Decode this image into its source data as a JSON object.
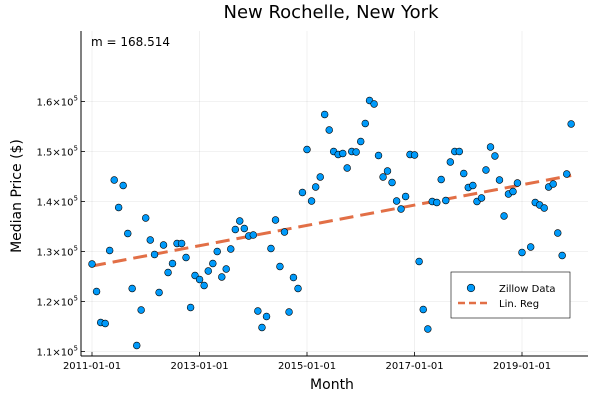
{
  "chart_data": {
    "type": "scatter",
    "title": "New Rochelle, New York",
    "xlabel": "Month",
    "ylabel": "Median Price ($)",
    "x_tick_labels": [
      "2011-01-01",
      "2013-01-01",
      "2015-01-01",
      "2017-01-01",
      "2019-01-01"
    ],
    "y_tick_labels": [
      {
        "value": 110000,
        "base": "1.1×10",
        "exp": "5"
      },
      {
        "value": 120000,
        "base": "1.2×10",
        "exp": "5"
      },
      {
        "value": 130000,
        "base": "1.3×10",
        "exp": "5"
      },
      {
        "value": 140000,
        "base": "1.4×10",
        "exp": "5"
      },
      {
        "value": 150000,
        "base": "1.5×10",
        "exp": "5"
      },
      {
        "value": 160000,
        "base": "1.6×10",
        "exp": "5"
      }
    ],
    "annotation": "m = 168.514",
    "grid": true,
    "legend_position": "bottom-right",
    "series": [
      {
        "name": "Zillow Data",
        "kind": "scatter",
        "color": "#009AFA",
        "points": [
          [
            "2011-01-01",
            127500
          ],
          [
            "2011-02-01",
            122000
          ],
          [
            "2011-03-01",
            115800
          ],
          [
            "2011-04-01",
            115600
          ],
          [
            "2011-05-01",
            130200
          ],
          [
            "2011-06-01",
            144300
          ],
          [
            "2011-07-01",
            138800
          ],
          [
            "2011-08-01",
            143200
          ],
          [
            "2011-09-01",
            133600
          ],
          [
            "2011-10-01",
            122600
          ],
          [
            "2011-11-01",
            111200
          ],
          [
            "2011-12-01",
            118300
          ],
          [
            "2012-01-01",
            136700
          ],
          [
            "2012-02-01",
            132300
          ],
          [
            "2012-03-01",
            129400
          ],
          [
            "2012-04-01",
            121800
          ],
          [
            "2012-05-01",
            131300
          ],
          [
            "2012-06-01",
            125800
          ],
          [
            "2012-07-01",
            127600
          ],
          [
            "2012-08-01",
            131600
          ],
          [
            "2012-09-01",
            131600
          ],
          [
            "2012-10-01",
            128800
          ],
          [
            "2012-11-01",
            118800
          ],
          [
            "2012-12-01",
            125200
          ],
          [
            "2013-01-01",
            124400
          ],
          [
            "2013-02-01",
            123200
          ],
          [
            "2013-03-01",
            126100
          ],
          [
            "2013-04-01",
            127600
          ],
          [
            "2013-05-01",
            130000
          ],
          [
            "2013-06-01",
            124900
          ],
          [
            "2013-07-01",
            126500
          ],
          [
            "2013-08-01",
            130500
          ],
          [
            "2013-09-01",
            134400
          ],
          [
            "2013-10-01",
            136100
          ],
          [
            "2013-11-01",
            134600
          ],
          [
            "2013-12-01",
            133100
          ],
          [
            "2014-01-01",
            133300
          ],
          [
            "2014-02-01",
            118100
          ],
          [
            "2014-03-01",
            114800
          ],
          [
            "2014-04-01",
            117000
          ],
          [
            "2014-05-01",
            130600
          ],
          [
            "2014-06-01",
            136300
          ],
          [
            "2014-07-01",
            127000
          ],
          [
            "2014-08-01",
            133900
          ],
          [
            "2014-09-01",
            117900
          ],
          [
            "2014-10-01",
            124800
          ],
          [
            "2014-11-01",
            122600
          ],
          [
            "2014-12-01",
            141800
          ],
          [
            "2015-01-01",
            150400
          ],
          [
            "2015-02-01",
            140100
          ],
          [
            "2015-03-01",
            142900
          ],
          [
            "2015-04-01",
            144900
          ],
          [
            "2015-05-01",
            157400
          ],
          [
            "2015-06-01",
            154300
          ],
          [
            "2015-07-01",
            150000
          ],
          [
            "2015-08-01",
            149400
          ],
          [
            "2015-09-01",
            149600
          ],
          [
            "2015-10-01",
            146700
          ],
          [
            "2015-11-01",
            150000
          ],
          [
            "2015-12-01",
            149900
          ],
          [
            "2016-01-01",
            152000
          ],
          [
            "2016-02-01",
            155600
          ],
          [
            "2016-03-01",
            160200
          ],
          [
            "2016-04-01",
            159500
          ],
          [
            "2016-05-01",
            149200
          ],
          [
            "2016-06-01",
            144900
          ],
          [
            "2016-07-01",
            146100
          ],
          [
            "2016-08-01",
            143800
          ],
          [
            "2016-09-01",
            140100
          ],
          [
            "2016-10-01",
            138500
          ],
          [
            "2016-11-01",
            141000
          ],
          [
            "2016-12-01",
            149400
          ],
          [
            "2017-01-01",
            149300
          ],
          [
            "2017-02-01",
            128000
          ],
          [
            "2017-03-01",
            118400
          ],
          [
            "2017-04-01",
            114500
          ],
          [
            "2017-05-01",
            140000
          ],
          [
            "2017-06-01",
            139800
          ],
          [
            "2017-07-01",
            144400
          ],
          [
            "2017-08-01",
            140200
          ],
          [
            "2017-09-01",
            147900
          ],
          [
            "2017-10-01",
            150000
          ],
          [
            "2017-11-01",
            150000
          ],
          [
            "2017-12-01",
            145600
          ],
          [
            "2018-01-01",
            142800
          ],
          [
            "2018-02-01",
            143200
          ],
          [
            "2018-03-01",
            140000
          ],
          [
            "2018-04-01",
            140700
          ],
          [
            "2018-05-01",
            146300
          ],
          [
            "2018-06-01",
            150900
          ],
          [
            "2018-07-01",
            149100
          ],
          [
            "2018-08-01",
            144300
          ],
          [
            "2018-09-01",
            137100
          ],
          [
            "2018-10-01",
            141500
          ],
          [
            "2018-11-01",
            142000
          ],
          [
            "2018-12-01",
            143700
          ],
          [
            "2019-01-01",
            129800
          ],
          [
            "2019-03-01",
            130900
          ],
          [
            "2019-04-01",
            139800
          ],
          [
            "2019-05-01",
            139300
          ],
          [
            "2019-06-01",
            138700
          ],
          [
            "2019-07-01",
            142900
          ],
          [
            "2019-08-01",
            143500
          ],
          [
            "2019-09-01",
            133700
          ],
          [
            "2019-10-01",
            129200
          ],
          [
            "2019-11-01",
            145500
          ],
          [
            "2019-12-01",
            155500
          ]
        ]
      },
      {
        "name": "Lin. Reg",
        "kind": "line",
        "color": "#E26F46",
        "dashed": true,
        "points": [
          [
            "2011-01-01",
            127100
          ],
          [
            "2019-12-01",
            145200
          ]
        ]
      }
    ]
  }
}
